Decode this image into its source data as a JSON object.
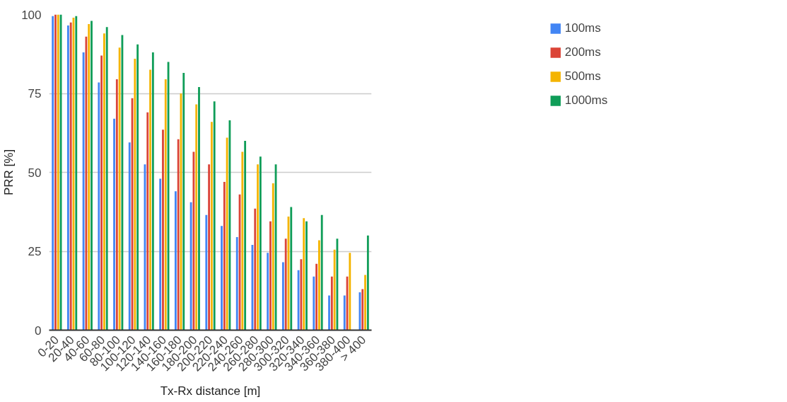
{
  "chart_data": {
    "type": "bar",
    "xlabel": "Tx-Rx distance [m]",
    "ylabel": "PRR [%]",
    "categories": [
      "0-20",
      "20-40",
      "40-60",
      "60-80",
      "80-100",
      "100-120",
      "120-140",
      "140-160",
      "160-180",
      "180-200",
      "200-220",
      "220-240",
      "240-260",
      "260-280",
      "280-300",
      "300-320",
      "320-340",
      "340-360",
      "360-380",
      "380-400",
      "> 400"
    ],
    "series": [
      {
        "name": "100ms",
        "color": "#4285f4",
        "values": [
          99.5,
          96.5,
          88,
          78.5,
          67,
          59.5,
          52.5,
          48,
          44,
          40.5,
          36.5,
          33,
          29.5,
          27,
          24.5,
          21.5,
          19,
          17,
          11,
          11,
          12
        ]
      },
      {
        "name": "200ms",
        "color": "#db4437",
        "values": [
          100,
          97.5,
          93,
          87,
          79.5,
          73.5,
          69,
          63.5,
          60.5,
          56.5,
          52.5,
          47,
          43,
          38.5,
          34.5,
          29,
          22.5,
          21,
          17,
          17,
          13
        ]
      },
      {
        "name": "500ms",
        "color": "#f4b400",
        "values": [
          100,
          99,
          97,
          94,
          89.5,
          86,
          82.5,
          79.5,
          75,
          71.5,
          66,
          61,
          56.5,
          52.5,
          46.5,
          36,
          35.5,
          28.5,
          25.5,
          24.5,
          17.5
        ]
      },
      {
        "name": "1000ms",
        "color": "#0f9d58",
        "values": [
          100,
          99.5,
          98,
          96,
          93.5,
          90.5,
          88,
          85,
          81.5,
          77,
          72.5,
          66.5,
          60,
          55,
          52.5,
          39,
          34.5,
          36.5,
          29,
          null,
          30
        ]
      }
    ],
    "ylim": [
      0,
      100
    ],
    "yticks": [
      0,
      25,
      50,
      75,
      100
    ],
    "grid": "y",
    "legend": "top right"
  }
}
